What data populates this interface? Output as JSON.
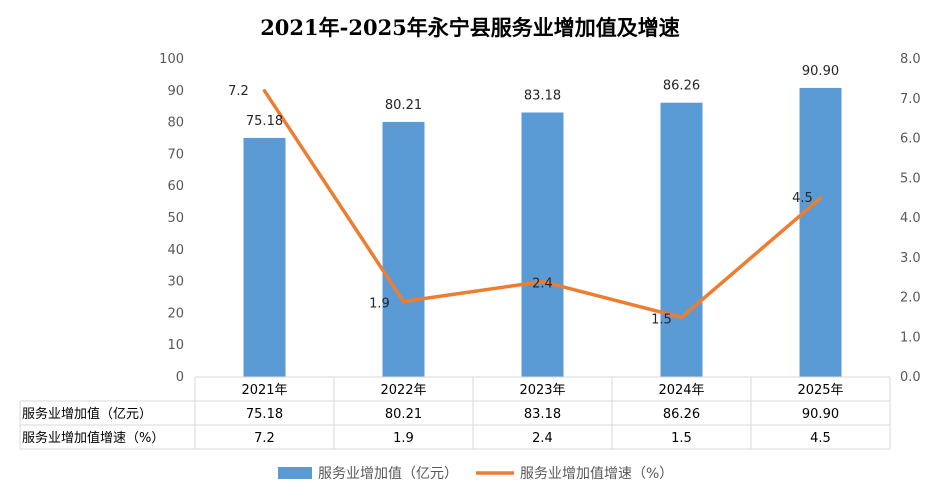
{
  "chart_data": {
    "type": "bar",
    "title": "2021年-2025年永宁县服务业增加值及增速",
    "categories": [
      "2021年",
      "2022年",
      "2023年",
      "2024年",
      "2025年"
    ],
    "series": [
      {
        "name": "服务业增加值（亿元）",
        "type": "bar",
        "axis": "left",
        "values": [
          75.18,
          80.21,
          83.18,
          86.26,
          90.9
        ],
        "labels": [
          "75.18",
          "80.21",
          "83.18",
          "86.26",
          "90.90"
        ],
        "color": "#5b9bd5"
      },
      {
        "name": "服务业增加值增速（%）",
        "type": "line",
        "axis": "right",
        "values": [
          7.2,
          1.9,
          2.4,
          1.5,
          4.5
        ],
        "labels": [
          "7.2",
          "1.9",
          "2.4",
          "1.5",
          "4.5"
        ],
        "color": "#ed7d31"
      }
    ],
    "left_axis": {
      "ylim": [
        0,
        100
      ],
      "ticks": [
        "0",
        "10",
        "20",
        "30",
        "40",
        "50",
        "60",
        "70",
        "80",
        "90",
        "100"
      ]
    },
    "right_axis": {
      "ylim": [
        0,
        8
      ],
      "ticks": [
        "0.0",
        "1.0",
        "2.0",
        "3.0",
        "4.0",
        "5.0",
        "6.0",
        "7.0",
        "8.0"
      ]
    },
    "grid": false,
    "data_table": true,
    "legend_position": "bottom"
  }
}
